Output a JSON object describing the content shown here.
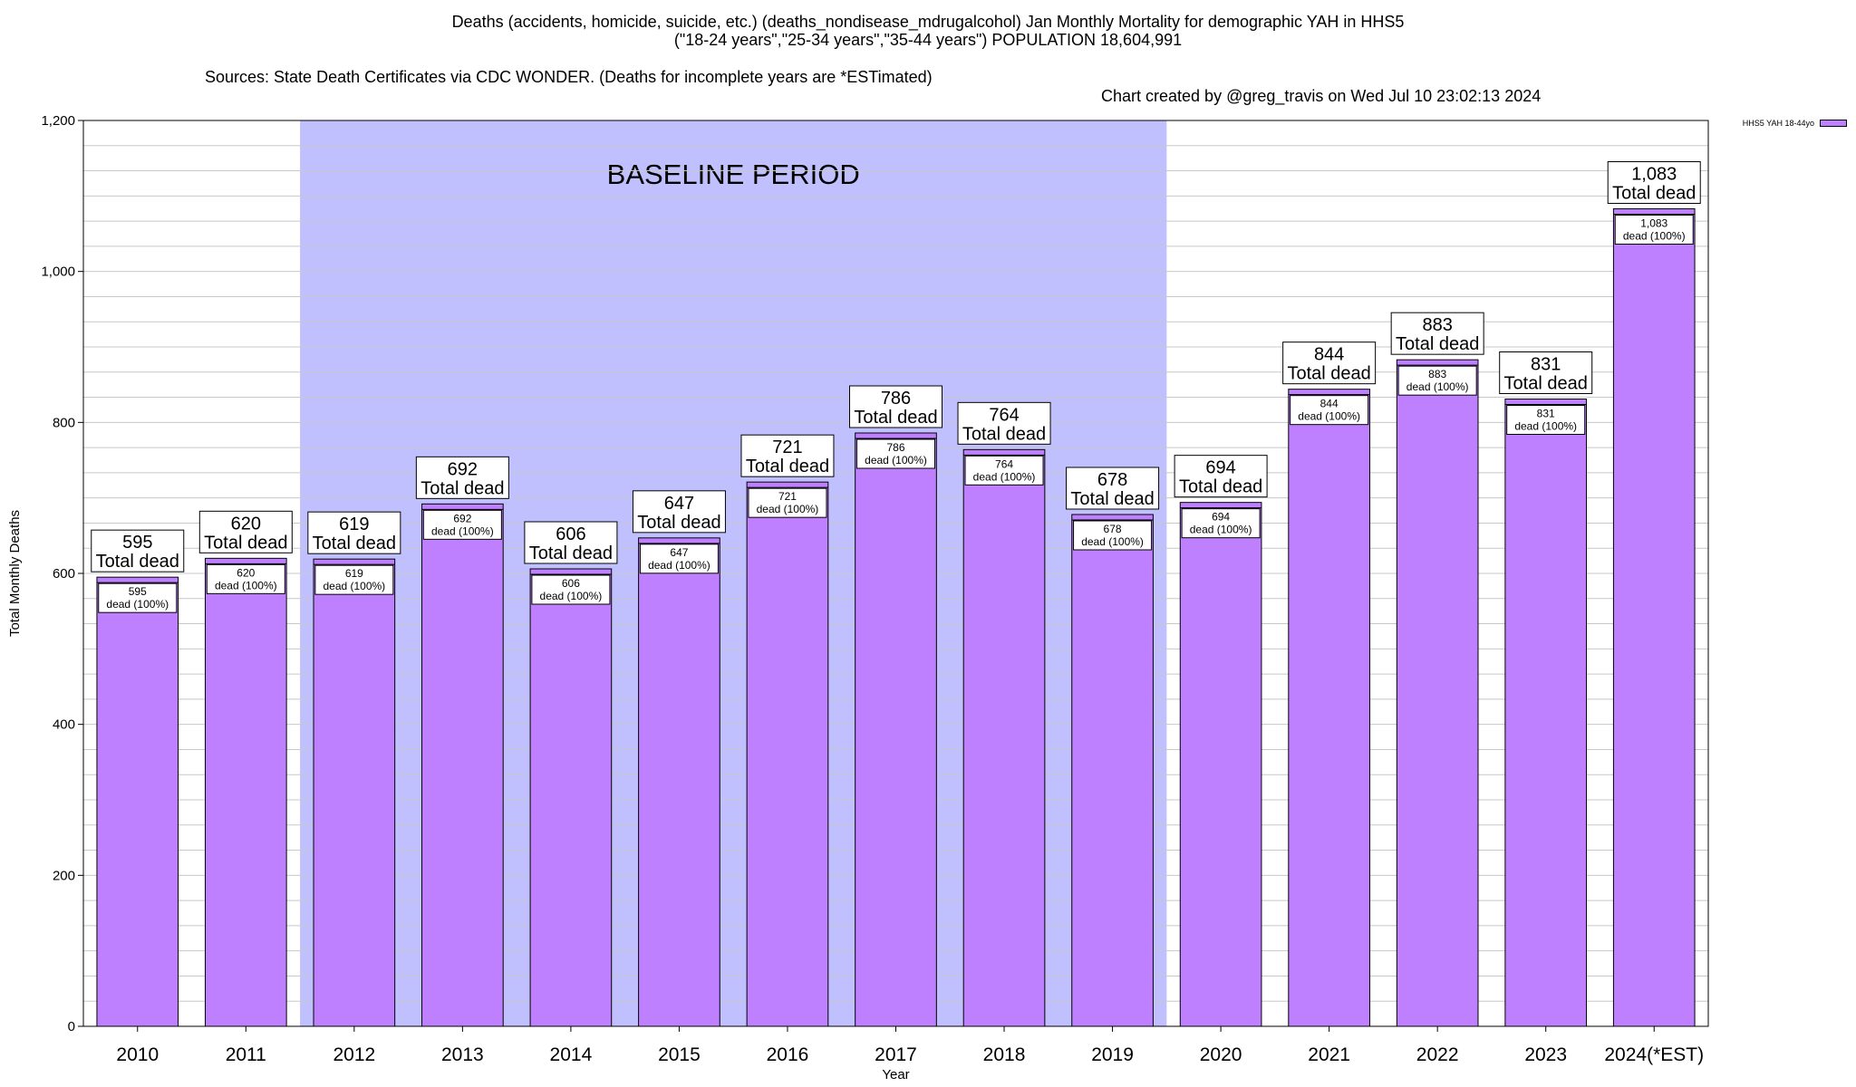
{
  "title": {
    "line1": "Deaths (accidents, homicide, suicide, etc.) (deaths_nondisease_mdrugalcohol) Jan Monthly Mortality for demographic YAH in HHS5",
    "line2": "(\"18-24 years\",\"25-34 years\",\"35-44 years\") POPULATION 18,604,991",
    "sources": "Sources: State Death Certificates via CDC WONDER. (Deaths for incomplete years are *ESTimated)",
    "credit": "Chart created by @greg_travis on Wed Jul 10 23:02:13 2024"
  },
  "colors": {
    "bar": "#bf80ff",
    "baseline": "#c0c0ff",
    "grid": "#c8c8c8"
  },
  "chart_data": {
    "type": "bar",
    "title": "Deaths (accidents, homicide, suicide, etc.) (deaths_nondisease_mdrugalcohol) Jan Monthly Mortality for demographic YAH in HHS5",
    "xlabel": "Year",
    "ylabel": "Total Monthly Deaths",
    "ylim": [
      0,
      1200
    ],
    "yticks": [
      0,
      200,
      400,
      600,
      800,
      1000,
      1200
    ],
    "ytick_labels": [
      "0",
      "200",
      "400",
      "600",
      "800",
      "1,000",
      "1,200"
    ],
    "grid": true,
    "legend_position": "top-right",
    "categories": [
      "2010",
      "2011",
      "2012",
      "2013",
      "2014",
      "2015",
      "2016",
      "2017",
      "2018",
      "2019",
      "2020",
      "2021",
      "2022",
      "2023",
      "2024(*EST)"
    ],
    "series": [
      {
        "name": "HHS5 YAH 18-44yo",
        "values": [
          595,
          620,
          619,
          692,
          606,
          647,
          721,
          786,
          764,
          678,
          694,
          844,
          883,
          831,
          1083
        ]
      }
    ],
    "top_labels": [
      "595",
      "620",
      "619",
      "692",
      "606",
      "647",
      "721",
      "786",
      "764",
      "678",
      "694",
      "844",
      "883",
      "831",
      "1,083"
    ],
    "top_label_suffix": "Total dead",
    "inner_label_suffix": "dead (100%)",
    "shaded_region": {
      "label": "BASELINE PERIOD",
      "from": "2012",
      "to": "2019"
    }
  }
}
